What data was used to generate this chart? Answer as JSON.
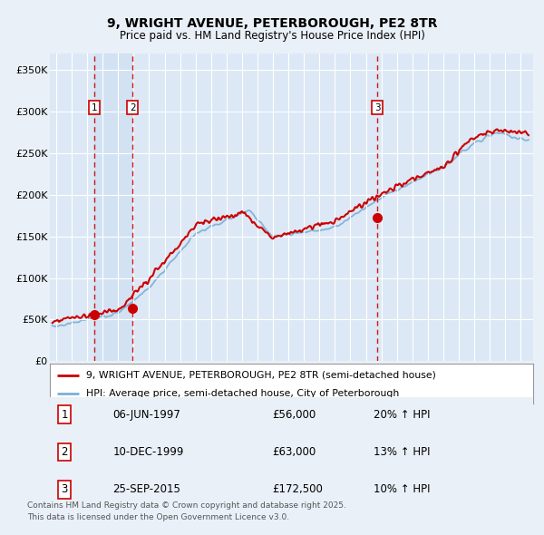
{
  "title": "9, WRIGHT AVENUE, PETERBOROUGH, PE2 8TR",
  "subtitle": "Price paid vs. HM Land Registry's House Price Index (HPI)",
  "bg_color": "#eaf0f8",
  "plot_bg": "#dce8f5",
  "red_line_color": "#cc0000",
  "blue_line_color": "#7bafd4",
  "sale_dates_num": [
    1997.44,
    1999.94,
    2015.73
  ],
  "sale_prices": [
    56000,
    63000,
    172500
  ],
  "sale_labels": [
    "1",
    "2",
    "3"
  ],
  "sale_date_str": [
    "06-JUN-1997",
    "10-DEC-1999",
    "25-SEP-2015"
  ],
  "sale_price_str": [
    "£56,000",
    "£63,000",
    "£172,500"
  ],
  "sale_hpi_str": [
    "20% ↑ HPI",
    "13% ↑ HPI",
    "10% ↑ HPI"
  ],
  "legend_line1": "9, WRIGHT AVENUE, PETERBOROUGH, PE2 8TR (semi-detached house)",
  "legend_line2": "HPI: Average price, semi-detached house, City of Peterborough",
  "footer": "Contains HM Land Registry data © Crown copyright and database right 2025.\nThis data is licensed under the Open Government Licence v3.0.",
  "ylim": [
    0,
    370000
  ],
  "yticks": [
    0,
    50000,
    100000,
    150000,
    200000,
    250000,
    300000,
    350000
  ],
  "ytick_labels": [
    "£0",
    "£50K",
    "£100K",
    "£150K",
    "£200K",
    "£250K",
    "£300K",
    "£350K"
  ],
  "xmin": 1994.6,
  "xmax": 2025.8
}
